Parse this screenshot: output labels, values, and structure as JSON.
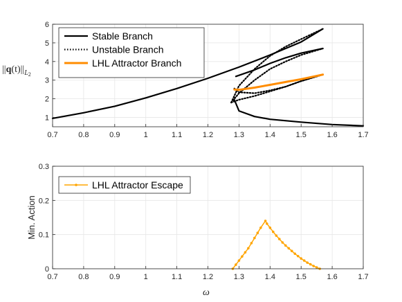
{
  "chart_data": [
    {
      "type": "line",
      "ylabel": "||q(t)||_{L_2}",
      "xlim": [
        0.7,
        1.7
      ],
      "ylim": [
        0.5,
        6
      ],
      "xticks": [
        "0.7",
        "0.8",
        "0.9",
        "1",
        "1.1",
        "1.2",
        "1.3",
        "1.4",
        "1.5",
        "1.6",
        "1.7"
      ],
      "yticks": [
        "1",
        "2",
        "3",
        "4",
        "5",
        "6"
      ],
      "grid": true,
      "legend_position": "top-left",
      "series": [
        {
          "name": "Stable Branch",
          "style": "solid",
          "color": "#000000",
          "segments": [
            [
              [
                0.7,
                0.95
              ],
              [
                0.8,
                1.25
              ],
              [
                0.9,
                1.6
              ],
              [
                1.0,
                2.05
              ],
              [
                1.1,
                2.55
              ],
              [
                1.2,
                3.1
              ],
              [
                1.3,
                3.7
              ],
              [
                1.4,
                4.35
              ],
              [
                1.5,
                5.05
              ],
              [
                1.57,
                5.75
              ]
            ],
            [
              [
                1.285,
                1.95
              ],
              [
                1.3,
                1.35
              ],
              [
                1.35,
                1.05
              ],
              [
                1.4,
                0.9
              ],
              [
                1.5,
                0.75
              ],
              [
                1.6,
                0.62
              ],
              [
                1.7,
                0.55
              ]
            ],
            [
              [
                1.29,
                3.2
              ],
              [
                1.35,
                3.55
              ],
              [
                1.4,
                3.9
              ],
              [
                1.45,
                4.2
              ],
              [
                1.5,
                4.45
              ],
              [
                1.57,
                4.7
              ]
            ]
          ]
        },
        {
          "name": "Unstable Branch",
          "style": "dotted",
          "color": "#000000",
          "segments": [
            [
              [
                1.275,
                1.8
              ],
              [
                1.3,
                2.7
              ],
              [
                1.35,
                3.6
              ],
              [
                1.4,
                4.3
              ],
              [
                1.45,
                4.8
              ],
              [
                1.5,
                5.2
              ],
              [
                1.57,
                5.75
              ]
            ],
            [
              [
                1.275,
                1.8
              ],
              [
                1.3,
                2.3
              ],
              [
                1.35,
                3.0
              ],
              [
                1.4,
                3.6
              ],
              [
                1.45,
                4.0
              ],
              [
                1.5,
                4.35
              ],
              [
                1.57,
                4.7
              ]
            ],
            [
              [
                1.275,
                1.8
              ],
              [
                1.3,
                1.95
              ],
              [
                1.35,
                2.15
              ],
              [
                1.4,
                2.4
              ],
              [
                1.45,
                2.65
              ],
              [
                1.5,
                2.95
              ],
              [
                1.57,
                3.3
              ]
            ],
            [
              [
                1.285,
                2.55
              ],
              [
                1.3,
                2.35
              ],
              [
                1.35,
                2.3
              ],
              [
                1.4,
                2.45
              ],
              [
                1.45,
                2.65
              ],
              [
                1.5,
                2.95
              ],
              [
                1.57,
                3.3
              ]
            ]
          ]
        },
        {
          "name": "LHL Attractor Branch",
          "style": "solid",
          "color": "#ff8c00",
          "segments": [
            [
              [
                1.285,
                2.5
              ],
              [
                1.3,
                2.48
              ],
              [
                1.35,
                2.6
              ],
              [
                1.4,
                2.75
              ],
              [
                1.45,
                2.9
              ],
              [
                1.5,
                3.05
              ],
              [
                1.57,
                3.3
              ]
            ]
          ]
        }
      ]
    },
    {
      "type": "line",
      "xlabel": "ω",
      "ylabel": "Min. Action",
      "xlim": [
        0.7,
        1.7
      ],
      "ylim": [
        0,
        0.3
      ],
      "xticks": [
        "0.7",
        "0.8",
        "0.9",
        "1",
        "1.1",
        "1.2",
        "1.3",
        "1.4",
        "1.5",
        "1.6",
        "1.7"
      ],
      "yticks": [
        "0",
        "0.1",
        "0.2",
        "0.3"
      ],
      "grid": true,
      "legend_position": "top-left",
      "series": [
        {
          "name": "LHL Attractor Escape",
          "style": "solid-markers",
          "color": "#ffa500",
          "x": [
            1.28,
            1.29,
            1.3,
            1.31,
            1.32,
            1.33,
            1.34,
            1.35,
            1.36,
            1.37,
            1.385,
            1.39,
            1.4,
            1.41,
            1.42,
            1.43,
            1.44,
            1.45,
            1.46,
            1.47,
            1.48,
            1.49,
            1.5,
            1.51,
            1.52,
            1.53,
            1.54,
            1.55,
            1.56
          ],
          "y": [
            0.0,
            0.012,
            0.024,
            0.036,
            0.048,
            0.06,
            0.075,
            0.09,
            0.105,
            0.12,
            0.14,
            0.132,
            0.12,
            0.108,
            0.097,
            0.087,
            0.077,
            0.068,
            0.06,
            0.052,
            0.044,
            0.037,
            0.03,
            0.024,
            0.018,
            0.013,
            0.008,
            0.004,
            0.0
          ]
        }
      ]
    }
  ]
}
